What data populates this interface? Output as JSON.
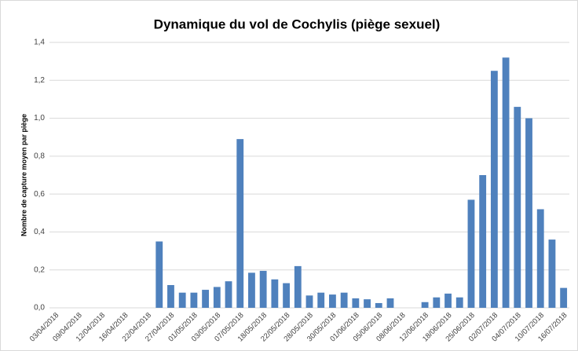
{
  "chart_data": {
    "type": "bar",
    "title": "Dynamique du vol de Cochylis (piège sexuel)",
    "y_label": "Nombre de capture moyen par piège",
    "categories": [
      "03/04/2018",
      null,
      "09/04/2018",
      null,
      "12/04/2018",
      null,
      "16/04/2018",
      null,
      "22/04/2018",
      null,
      "27/04/2018",
      null,
      "01/05/2018",
      null,
      "03/05/2018",
      null,
      "07/05/2018",
      null,
      "18/05/2018",
      null,
      "22/05/2018",
      null,
      "28/05/2018",
      null,
      "30/05/2018",
      null,
      "01/06/2018",
      null,
      "05/06/2018",
      null,
      "08/06/2018",
      null,
      "12/06/2018",
      null,
      "18/06/2018",
      null,
      "25/06/2018",
      null,
      "02/07/2018",
      null,
      "04/07/2018",
      null,
      "10/07/2018",
      null,
      "16/07/2018"
    ],
    "values": [
      0,
      0,
      0,
      0,
      0,
      0,
      0,
      0,
      0,
      0.35,
      0.12,
      0.08,
      0.08,
      0.095,
      0.11,
      0.14,
      0.89,
      0.185,
      0.195,
      0.15,
      0.13,
      0.22,
      0.065,
      0.08,
      0.07,
      0.08,
      0.05,
      0.045,
      0.025,
      0.05,
      0,
      0,
      0.03,
      0.055,
      0.075,
      0.055,
      0.57,
      0.7,
      1.25,
      1.32,
      1.06,
      1.0,
      0.52,
      0.36,
      0.105
    ],
    "color": "#4f81bd",
    "ylim": [
      0,
      1.4
    ],
    "yticks": [
      {
        "value": 0,
        "label": "0,0"
      },
      {
        "value": 0.2,
        "label": "0,2"
      },
      {
        "value": 0.4,
        "label": "0,4"
      },
      {
        "value": 0.6,
        "label": "0,6"
      },
      {
        "value": 0.8,
        "label": "0,8"
      },
      {
        "value": 1.0,
        "label": "1,0"
      },
      {
        "value": 1.2,
        "label": "1,2"
      },
      {
        "value": 1.4,
        "label": "1,4"
      }
    ],
    "grid": true
  }
}
